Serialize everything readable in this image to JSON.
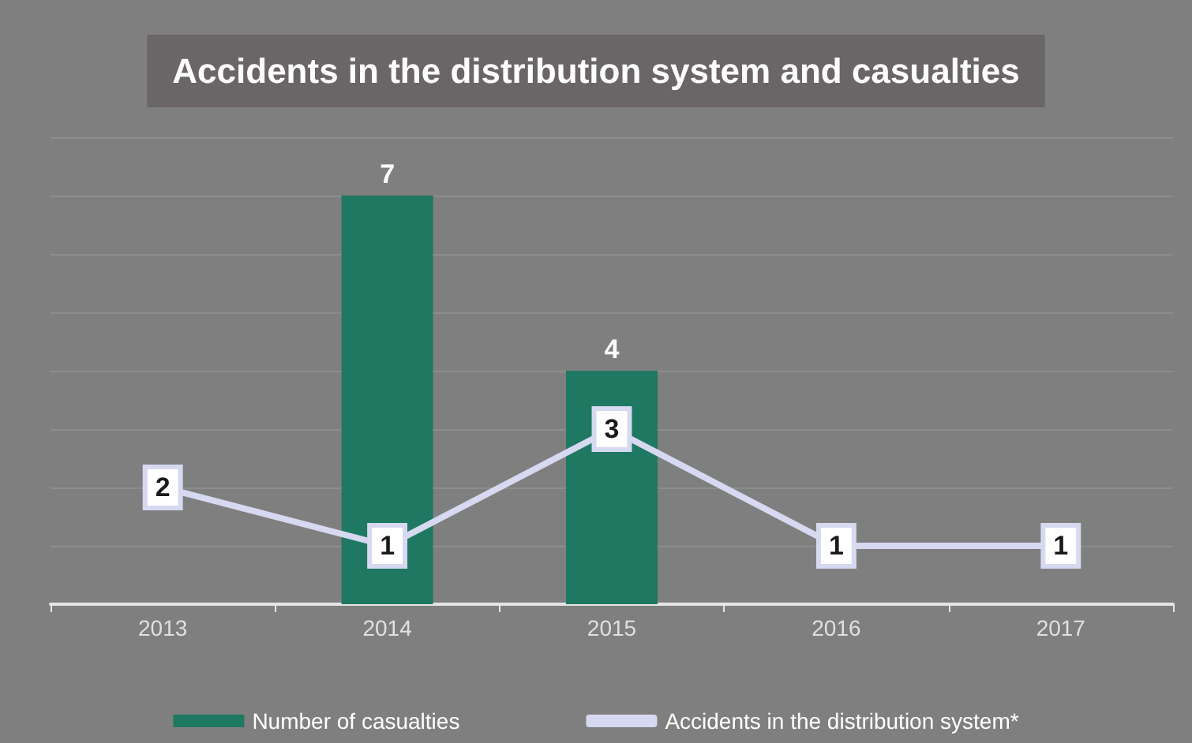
{
  "chart_data": {
    "type": "bar",
    "title": "Accidents in the distribution system and casualties",
    "categories": [
      "2013",
      "2014",
      "2015",
      "2016",
      "2017"
    ],
    "series": [
      {
        "name": "Number of casualties",
        "color": "#1e7862",
        "values": [
          null,
          7,
          4,
          null,
          null
        ]
      },
      {
        "name": "Accidents in the distribution system*",
        "type": "line",
        "color": "#d6d9f0",
        "values": [
          2,
          1,
          3,
          1,
          1
        ]
      }
    ],
    "ylim": [
      0,
      8
    ],
    "yticks": [
      {
        "value": 0,
        "label": null
      },
      {
        "value": 1,
        "label": null
      },
      {
        "value": 2,
        "label": null
      },
      {
        "value": 3,
        "label": null
      },
      {
        "value": 4,
        "label": null
      },
      {
        "value": 5,
        "label": null
      },
      {
        "value": 6,
        "label": null
      },
      {
        "value": 7,
        "label": null
      },
      {
        "value": 8,
        "label": null
      }
    ],
    "grid": "y",
    "marker": "square",
    "tick_labels": "x",
    "data_labels": true,
    "legend": "bottom"
  }
}
